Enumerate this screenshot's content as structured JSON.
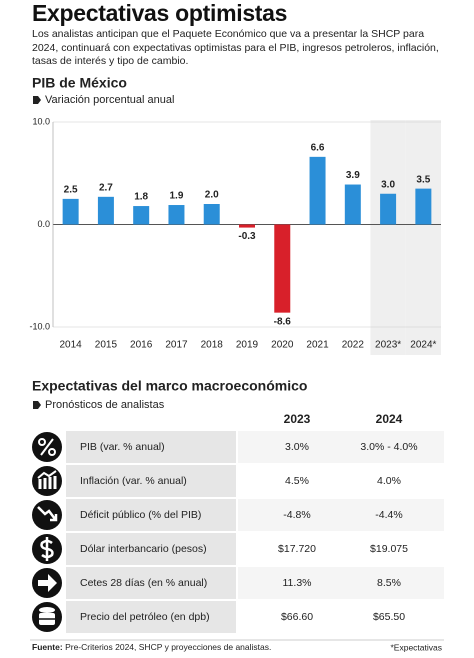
{
  "header": {
    "title": "Expectativas optimistas",
    "intro": "Los analistas anticipan que el Paquete Económico que va a presentar la SHCP para 2024, continuará con expectativas optimistas para el PIB, ingresos petroleros, inflación, tasas de interés y tipo de cambio."
  },
  "chart_data": {
    "type": "bar",
    "title": "PIB de México",
    "subtitle": "Variación porcentual anual",
    "categories": [
      "2014",
      "2015",
      "2016",
      "2017",
      "2018",
      "2019",
      "2020",
      "2021",
      "2022",
      "2023*",
      "2024*"
    ],
    "values": [
      2.5,
      2.7,
      1.8,
      1.9,
      2.0,
      -0.3,
      -8.6,
      6.6,
      3.9,
      3.0,
      3.5
    ],
    "value_labels": [
      "2.5",
      "2.7",
      "1.8",
      "1.9",
      "2.0",
      "-0.3",
      "-8.6",
      "6.6",
      "3.9",
      "3.0",
      "3.5"
    ],
    "color": "#2b8fd8",
    "negative_color": "#d8202a",
    "ylim": [
      -10,
      10
    ],
    "yticks": [
      {
        "value": -10,
        "label": "-10.0"
      },
      {
        "value": 0,
        "label": "0.0"
      },
      {
        "value": 10,
        "label": "10.0"
      }
    ]
  },
  "table": {
    "title": "Expectativas del marco macroeconómico",
    "subtitle": "Pronósticos de analistas",
    "columns": [
      "2023",
      "2024"
    ],
    "rows": [
      [
        "PIB (var. % anual)",
        "3.0%",
        "3.0% - 4.0%"
      ],
      [
        "Inflación (var. % anual)",
        "4.5%",
        "4.0%"
      ],
      [
        "Déficit público (% del PIB)",
        "-4.8%",
        "-4.4%"
      ],
      [
        "Dólar interbancario (pesos)",
        "$17.720",
        "$19.075"
      ],
      [
        "Cetes 28 días (en % anual)",
        "11.3%",
        "8.5%"
      ],
      [
        "Precio del petróleo (en dpb)",
        "$66.60",
        "$65.50"
      ]
    ]
  },
  "footer": {
    "source_label": "Fuente:",
    "source": " Pre-Criterios 2024, SHCP y proyecciones de analistas.",
    "note": "*Expectativas"
  }
}
